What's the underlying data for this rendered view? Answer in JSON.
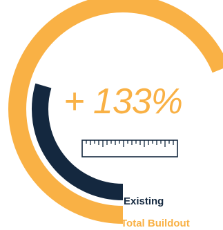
{
  "chart_data": {
    "type": "radial-bar",
    "headline": "+ 133%",
    "series": [
      {
        "name": "Total Buildout",
        "value": 233,
        "color": "#F9B145"
      },
      {
        "name": "Existing",
        "value": 100,
        "color": "#14283F"
      }
    ],
    "max": 313
  },
  "icon": "ruler-icon",
  "colors": {
    "accent": "#F9B145",
    "dark": "#14283F",
    "background": "#FFFFFF"
  }
}
